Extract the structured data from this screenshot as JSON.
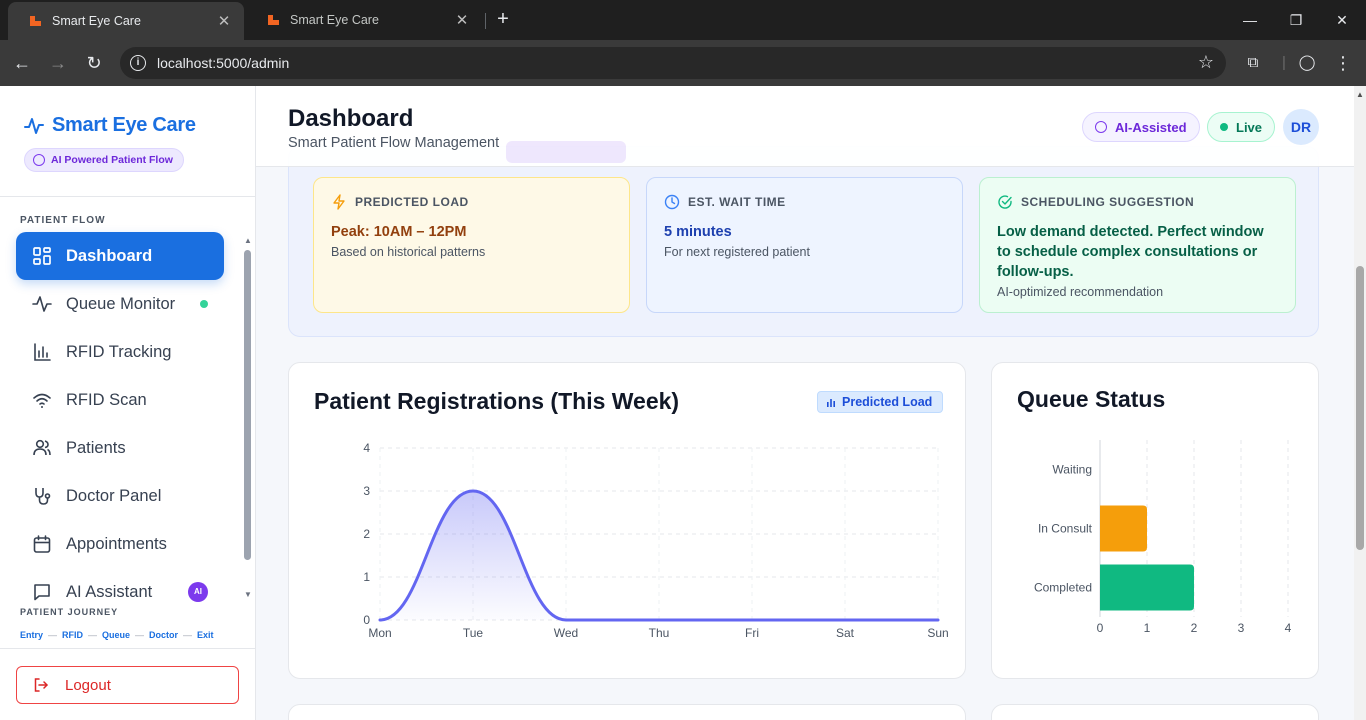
{
  "browser": {
    "tabs": [
      {
        "title": "Smart Eye Care",
        "active": true
      },
      {
        "title": "Smart Eye Care",
        "active": false
      }
    ],
    "url": "localhost:5000/admin"
  },
  "sidebar": {
    "brand": "Smart Eye Care",
    "badge": "AI Powered Patient Flow",
    "section_label": "PATIENT FLOW",
    "items": [
      {
        "label": "Dashboard",
        "icon": "dashboard-icon",
        "active": true
      },
      {
        "label": "Queue Monitor",
        "icon": "activity-icon",
        "status_dot": true
      },
      {
        "label": "RFID Tracking",
        "icon": "bar-chart-icon"
      },
      {
        "label": "RFID Scan",
        "icon": "wifi-icon"
      },
      {
        "label": "Patients",
        "icon": "users-icon"
      },
      {
        "label": "Doctor Panel",
        "icon": "stethoscope-icon"
      },
      {
        "label": "Appointments",
        "icon": "calendar-icon"
      },
      {
        "label": "AI Assistant",
        "icon": "chat-icon",
        "badge": "AI"
      }
    ],
    "journey_label": "PATIENT JOURNEY",
    "journey_steps": [
      "Entry",
      "RFID",
      "Queue",
      "Doctor",
      "Exit"
    ],
    "logout": "Logout"
  },
  "header": {
    "title": "Dashboard",
    "subtitle": "Smart Patient Flow Management",
    "ai_badge": "AI-Assisted",
    "live_badge": "Live",
    "avatar": "DR"
  },
  "insights": {
    "predicted_load": {
      "label": "PREDICTED LOAD",
      "value": "Peak: 10AM – 12PM",
      "note": "Based on historical patterns"
    },
    "wait_time": {
      "label": "EST. WAIT TIME",
      "value": "5 minutes",
      "note": "For next registered patient"
    },
    "scheduling": {
      "label": "SCHEDULING SUGGESTION",
      "value": "Low demand detected. Perfect window to schedule complex consultations or follow-ups.",
      "note": "AI-optimized recommendation"
    }
  },
  "registrations_card": {
    "title": "Patient Registrations (This Week)",
    "badge": "Predicted Load"
  },
  "queue_card": {
    "title": "Queue Status"
  },
  "chart_data": [
    {
      "type": "area",
      "categories": [
        "Mon",
        "Tue",
        "Wed",
        "Thu",
        "Fri",
        "Sat",
        "Sun"
      ],
      "values": [
        0,
        3,
        0,
        0,
        0,
        0,
        0
      ],
      "ylim": [
        0,
        4
      ],
      "yticks": [
        0,
        1,
        2,
        3,
        4
      ],
      "grid": true,
      "color": "#6366f1"
    },
    {
      "type": "bar",
      "orientation": "horizontal",
      "categories": [
        "Waiting",
        "In Consult",
        "Completed"
      ],
      "values": [
        0,
        1,
        2
      ],
      "colors": [
        "#f59e0b",
        "#f59e0b",
        "#10b981"
      ],
      "xlim": [
        0,
        4
      ],
      "xticks": [
        0,
        1,
        2,
        3,
        4
      ],
      "grid": true
    }
  ]
}
